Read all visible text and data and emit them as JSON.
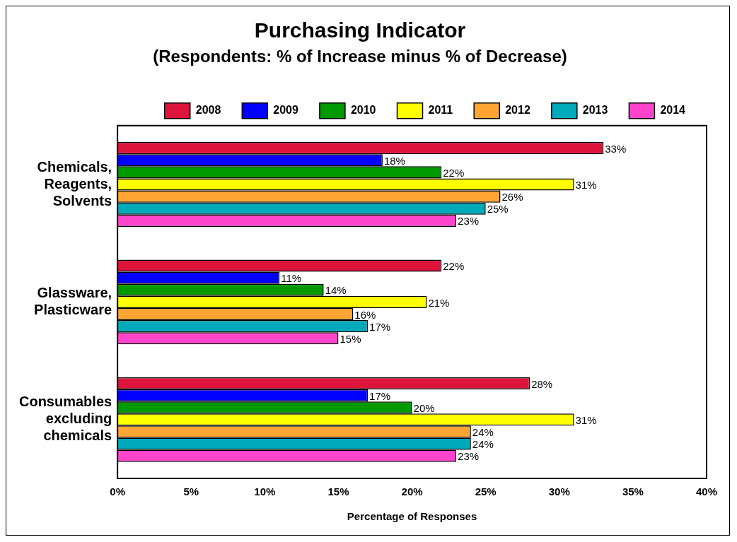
{
  "chart_data": {
    "type": "bar",
    "orientation": "horizontal",
    "title": "Purchasing Indicator",
    "subtitle": "(Respondents: % of Increase minus % of Decrease)",
    "categories": [
      "Chemicals, Reagents, Solvents",
      "Glassware, Plasticware",
      "Consumables excluding chemicals"
    ],
    "series": [
      {
        "name": "2008",
        "color": "#dc143c",
        "values": [
          33,
          22,
          28
        ],
        "value_labels": [
          "33%",
          "22%",
          "28%"
        ]
      },
      {
        "name": "2009",
        "color": "#0000ff",
        "values": [
          18,
          11,
          17
        ],
        "value_labels": [
          "18%",
          "11%",
          "17%"
        ]
      },
      {
        "name": "2010",
        "color": "#009900",
        "values": [
          22,
          14,
          20
        ],
        "value_labels": [
          "22%",
          "14%",
          "20%"
        ]
      },
      {
        "name": "2011",
        "color": "#ffff00",
        "values": [
          31,
          21,
          31
        ],
        "value_labels": [
          "31%",
          "21%",
          "31%"
        ]
      },
      {
        "name": "2012",
        "color": "#ffa533",
        "values": [
          26,
          16,
          24
        ],
        "value_labels": [
          "26%",
          "16%",
          "24%"
        ]
      },
      {
        "name": "2013",
        "color": "#00aabb",
        "values": [
          25,
          17,
          24
        ],
        "value_labels": [
          "25%",
          "17%",
          "24%"
        ]
      },
      {
        "name": "2014",
        "color": "#ff44cc",
        "values": [
          23,
          15,
          23
        ],
        "value_labels": [
          "23%",
          "15%",
          "23%"
        ]
      }
    ],
    "xlim": [
      0,
      40
    ],
    "xticks": [
      {
        "value": 0,
        "label": "0%"
      },
      {
        "value": 5,
        "label": "5%"
      },
      {
        "value": 10,
        "label": "10%"
      },
      {
        "value": 15,
        "label": "15%"
      },
      {
        "value": 20,
        "label": "20%"
      },
      {
        "value": 25,
        "label": "25%"
      },
      {
        "value": 30,
        "label": "30%"
      },
      {
        "value": 35,
        "label": "35%"
      },
      {
        "value": 40,
        "label": "40%"
      }
    ],
    "xlabel": "Percentage of Responses",
    "legend": "top",
    "grid": false
  }
}
